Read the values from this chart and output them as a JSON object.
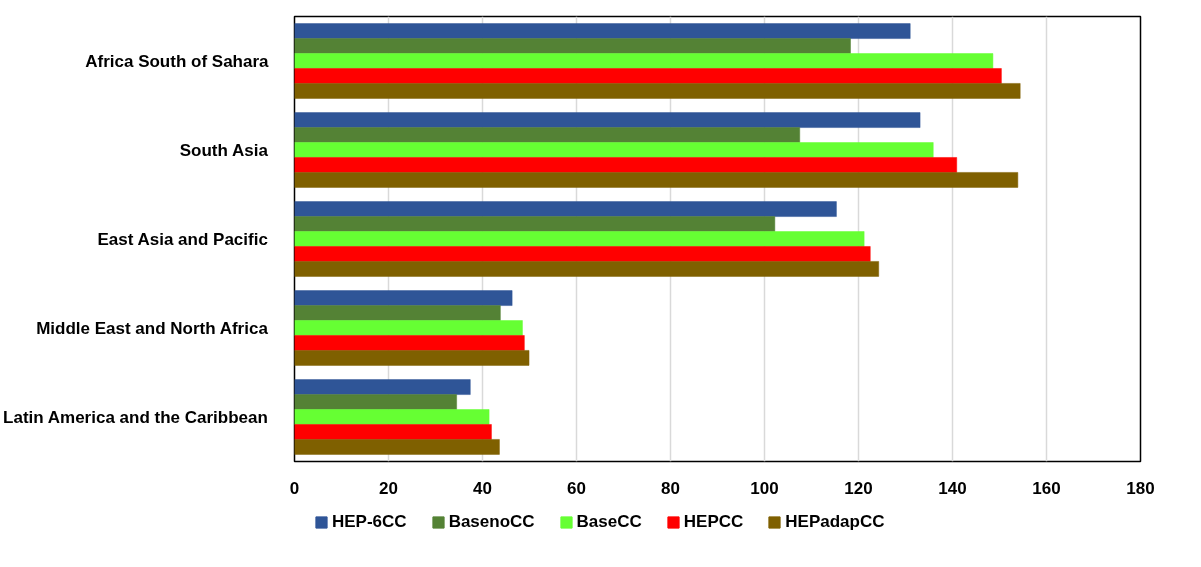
{
  "chart_data": {
    "type": "bar",
    "orientation": "horizontal",
    "categories": [
      "Africa South of Sahara",
      "South Asia",
      "East Asia and Pacific",
      "Middle East and North Africa",
      "Latin America and the Caribbean"
    ],
    "series": [
      {
        "name": "HEP-6CC",
        "color": "#2f5597",
        "values": [
          131.0,
          133.1,
          115.3,
          46.3,
          37.4
        ]
      },
      {
        "name": "BasenoCC",
        "color": "#548235",
        "values": [
          118.3,
          107.5,
          102.2,
          43.8,
          34.5
        ]
      },
      {
        "name": "BaseCC",
        "color": "#66ff33",
        "values": [
          148.6,
          135.9,
          121.2,
          48.5,
          41.4
        ]
      },
      {
        "name": "HEPCC",
        "color": "#ff0000",
        "values": [
          150.4,
          140.9,
          122.5,
          48.9,
          41.9
        ]
      },
      {
        "name": "HEPadapCC",
        "color": "#7f6000",
        "values": [
          154.4,
          153.9,
          124.3,
          49.9,
          43.6
        ]
      }
    ],
    "xlim": [
      0,
      180
    ],
    "xticks": [
      0,
      20,
      40,
      60,
      80,
      100,
      120,
      140,
      160,
      180
    ],
    "grid": "x",
    "legend": "bottom"
  }
}
